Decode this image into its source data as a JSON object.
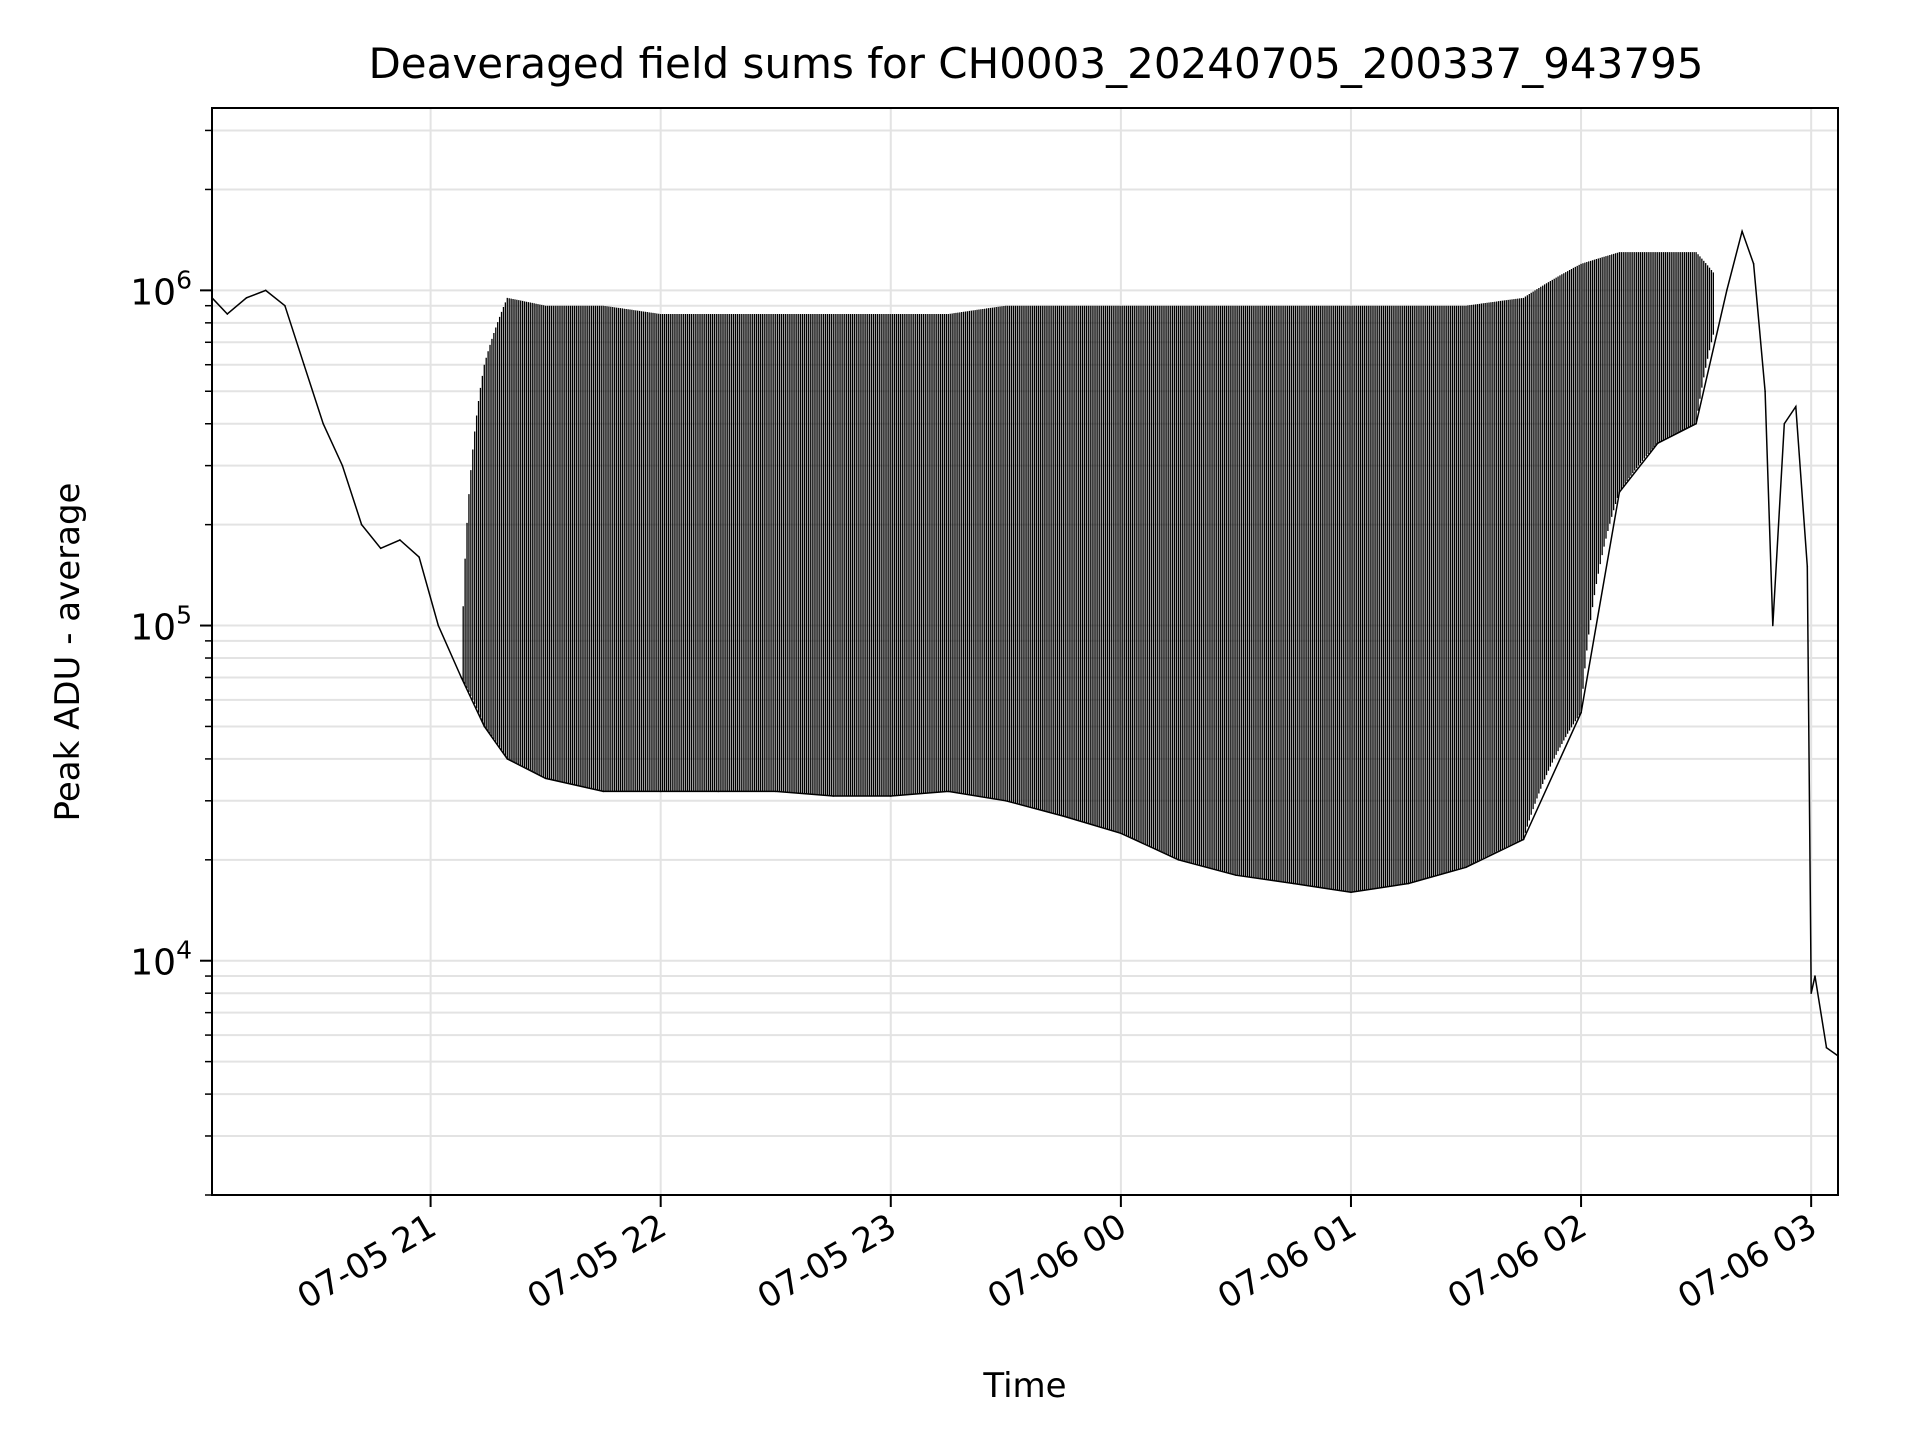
{
  "chart_data": {
    "type": "line",
    "title": "Deaveraged field sums for CH0003_20240705_200337_943795",
    "xlabel": "Time",
    "ylabel": "Peak ADU - average",
    "xscale": "time",
    "yscale": "log",
    "xlim": [
      "2024-07-05 20:03",
      "2024-07-06 03:07"
    ],
    "ylim": [
      2000,
      3500000
    ],
    "grid": true,
    "legend": "none",
    "line_color": "#000000",
    "x_ticks": [
      {
        "value": "2024-07-05 21:00",
        "label": "07-05 21"
      },
      {
        "value": "2024-07-05 22:00",
        "label": "07-05 22"
      },
      {
        "value": "2024-07-05 23:00",
        "label": "07-05 23"
      },
      {
        "value": "2024-07-06 00:00",
        "label": "07-06 00"
      },
      {
        "value": "2024-07-06 01:00",
        "label": "07-06 01"
      },
      {
        "value": "2024-07-06 02:00",
        "label": "07-06 02"
      },
      {
        "value": "2024-07-06 03:00",
        "label": "07-06 03"
      }
    ],
    "y_ticks": [
      {
        "value": 10000,
        "base": "10",
        "exp": "4"
      },
      {
        "value": 100000,
        "base": "10",
        "exp": "5"
      },
      {
        "value": 1000000,
        "base": "10",
        "exp": "6"
      }
    ],
    "series": [
      {
        "x": [
          "2024-07-05 20:03",
          "2024-07-05 20:07",
          "2024-07-05 20:12",
          "2024-07-05 20:17",
          "2024-07-05 20:22",
          "2024-07-05 20:27",
          "2024-07-05 20:32",
          "2024-07-05 20:37",
          "2024-07-05 20:42",
          "2024-07-05 20:47",
          "2024-07-05 20:52",
          "2024-07-05 20:57",
          "2024-07-05 21:02",
          "2024-07-05 21:08",
          "2024-07-05 21:14",
          "2024-07-05 21:20",
          "2024-07-05 21:30",
          "2024-07-05 21:45",
          "2024-07-05 22:00",
          "2024-07-05 22:15",
          "2024-07-05 22:30",
          "2024-07-05 22:45",
          "2024-07-05 23:00",
          "2024-07-05 23:15",
          "2024-07-05 23:30",
          "2024-07-05 23:45",
          "2024-07-06 00:00",
          "2024-07-06 00:15",
          "2024-07-06 00:30",
          "2024-07-06 00:45",
          "2024-07-06 01:00",
          "2024-07-06 01:15",
          "2024-07-06 01:30",
          "2024-07-06 01:45",
          "2024-07-06 02:00",
          "2024-07-06 02:10",
          "2024-07-06 02:20",
          "2024-07-06 02:30",
          "2024-07-06 02:38",
          "2024-07-06 02:42",
          "2024-07-06 02:45",
          "2024-07-06 02:48",
          "2024-07-06 02:50",
          "2024-07-06 02:53",
          "2024-07-06 02:56",
          "2024-07-06 02:59",
          "2024-07-06 03:00",
          "2024-07-06 03:01",
          "2024-07-06 03:04",
          "2024-07-06 03:07"
        ],
        "y": [
          950000,
          850000,
          950000,
          1000000,
          900000,
          600000,
          400000,
          300000,
          200000,
          170000,
          180000,
          160000,
          100000,
          70000,
          50000,
          40000,
          35000,
          32000,
          32000,
          32000,
          32000,
          31000,
          31000,
          32000,
          30000,
          27000,
          24000,
          20000,
          18000,
          17000,
          16000,
          17000,
          19000,
          23000,
          55000,
          250000,
          350000,
          400000,
          1000000,
          1500000,
          1200000,
          500000,
          100000,
          400000,
          450000,
          150000,
          8000,
          9000,
          5500,
          5200
        ],
        "lows": [
          950000,
          850000,
          950000,
          1000000,
          900000,
          600000,
          400000,
          300000,
          200000,
          170000,
          180000,
          160000,
          100000,
          70000,
          50000,
          40000,
          35000,
          32000,
          32000,
          32000,
          32000,
          31000,
          31000,
          32000,
          30000,
          27000,
          24000,
          20000,
          18000,
          17000,
          16000,
          17000,
          19000,
          23000,
          55000,
          250000,
          350000,
          400000,
          1000000,
          1500000,
          1200000,
          500000,
          100000,
          400000,
          450000,
          150000,
          8000,
          9000,
          5500,
          5200
        ],
        "highs": [
          950000,
          850000,
          950000,
          1000000,
          900000,
          600000,
          400000,
          300000,
          200000,
          170000,
          180000,
          160000,
          100000,
          70000,
          600000,
          950000,
          900000,
          900000,
          850000,
          850000,
          850000,
          850000,
          850000,
          850000,
          900000,
          900000,
          900000,
          900000,
          900000,
          900000,
          900000,
          900000,
          900000,
          950000,
          1200000,
          1300000,
          1300000,
          1300000,
          1000000,
          1500000,
          1200000,
          500000,
          100000,
          400000,
          450000,
          150000,
          8000,
          9000,
          5500,
          5200
        ]
      }
    ]
  }
}
